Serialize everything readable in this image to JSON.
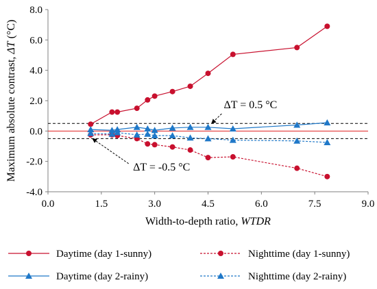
{
  "chart_data": {
    "type": "line",
    "xlabel": "Width-to-depth ratio, ",
    "xlabel_italic": "WTDR",
    "ylabel": "Maximum absolute contrast, ",
    "ylabel_italic": "ΔT",
    "ylabel_unit": " (°C)",
    "xlim": [
      0,
      9
    ],
    "ylim": [
      -4,
      8
    ],
    "xticks": [
      0,
      1.5,
      3,
      4.5,
      6,
      7.5,
      9
    ],
    "xtick_labels": [
      "0.0",
      "1.5",
      "3.0",
      "4.5",
      "6.0",
      "7.5",
      "9.0"
    ],
    "yticks": [
      -4,
      -2,
      0,
      2,
      4,
      6,
      8
    ],
    "ytick_labels": [
      "-4.0",
      "-2.0",
      "0.0",
      "2.0",
      "4.0",
      "6.0",
      "8.0"
    ],
    "grid": false,
    "legend_position": "bottom",
    "reference_lines": [
      {
        "y": 0.5,
        "color": "#000000",
        "style": "dashed"
      },
      {
        "y": -0.5,
        "color": "#000000",
        "style": "dashed"
      },
      {
        "y": 0,
        "color": "#e02020",
        "style": "solid"
      }
    ],
    "annotations": [
      {
        "text": "ΔT = 0.5 °C",
        "target": [
          4.6,
          0.5
        ],
        "text_at": [
          5.5,
          1.5
        ]
      },
      {
        "text": "ΔT = -0.5 °C",
        "target": [
          1.25,
          -0.5
        ],
        "text_at": [
          3.0,
          -2.6
        ]
      }
    ],
    "series": [
      {
        "name": "Daytime (day 1-sunny)",
        "color": "#c8102e",
        "marker": "circle",
        "dash": false,
        "x": [
          1.2,
          1.8,
          1.95,
          2.5,
          2.8,
          3.0,
          3.5,
          4.0,
          4.5,
          5.2,
          7.0,
          7.85
        ],
        "y": [
          0.45,
          1.25,
          1.25,
          1.5,
          2.05,
          2.3,
          2.6,
          2.95,
          3.8,
          5.05,
          5.5,
          6.9
        ]
      },
      {
        "name": "Nighttime (day 1-sunny)",
        "color": "#c8102e",
        "marker": "circle",
        "dash": true,
        "x": [
          1.2,
          1.8,
          1.95,
          2.5,
          2.8,
          3.0,
          3.5,
          4.0,
          4.5,
          5.2,
          7.0,
          7.85
        ],
        "y": [
          -0.25,
          -0.25,
          -0.3,
          -0.5,
          -0.85,
          -0.9,
          -1.05,
          -1.25,
          -1.75,
          -1.7,
          -2.45,
          -3.0
        ]
      },
      {
        "name": "Daytime (day 2-rainy)",
        "color": "#1f78c8",
        "marker": "triangle",
        "dash": false,
        "x": [
          1.2,
          1.8,
          1.95,
          2.5,
          2.8,
          3.0,
          3.5,
          4.0,
          4.5,
          5.2,
          7.0,
          7.85
        ],
        "y": [
          0.1,
          0.05,
          0.1,
          0.25,
          0.15,
          0.05,
          0.2,
          0.25,
          0.25,
          0.15,
          0.4,
          0.55
        ]
      },
      {
        "name": "Nighttime (day 2-rainy)",
        "color": "#1f78c8",
        "marker": "triangle",
        "dash": true,
        "x": [
          1.2,
          1.8,
          1.95,
          2.5,
          2.8,
          3.0,
          3.5,
          4.0,
          4.5,
          5.2,
          7.0,
          7.85
        ],
        "y": [
          -0.15,
          -0.2,
          -0.1,
          -0.25,
          -0.2,
          -0.3,
          -0.3,
          -0.45,
          -0.5,
          -0.6,
          -0.65,
          -0.75
        ]
      }
    ]
  }
}
